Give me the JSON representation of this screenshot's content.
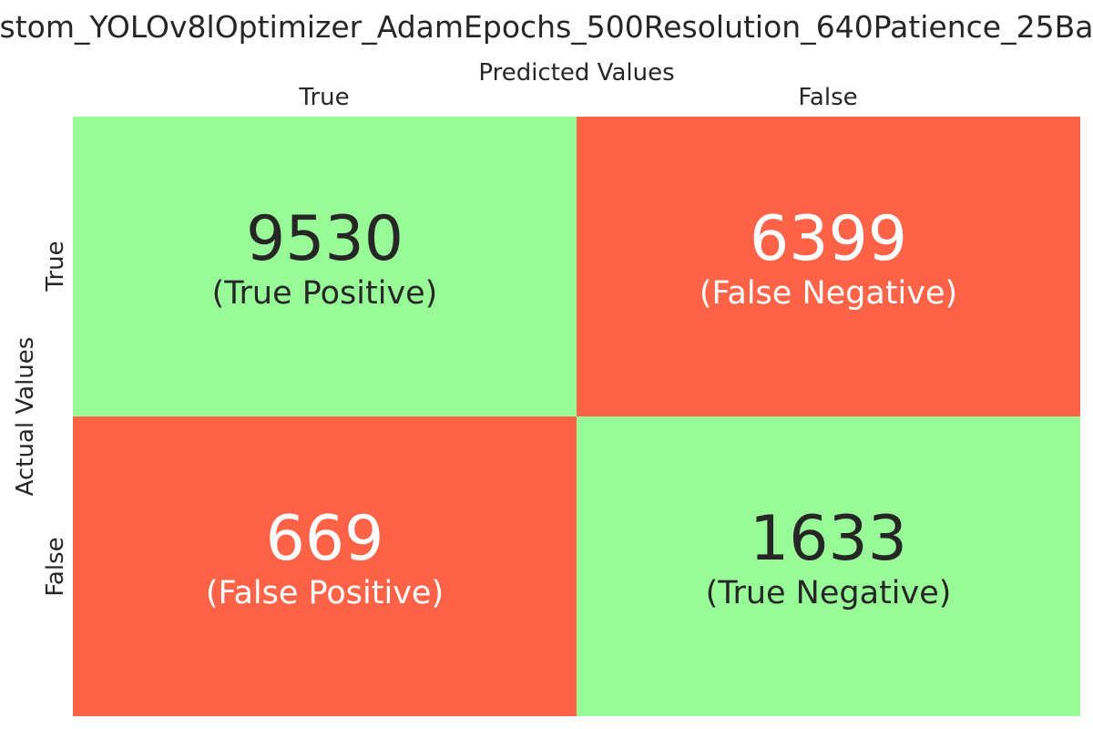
{
  "title": "stom_YOLOv8lOptimizer_AdamEpochs_500Resolution_640Patience_25Ba",
  "chart_data": {
    "type": "heatmap",
    "title": "stom_YOLOv8lOptimizer_AdamEpochs_500Resolution_640Patience_25Ba",
    "xlabel": "Predicted Values",
    "ylabel": "Actual Values",
    "x_categories": [
      "True",
      "False"
    ],
    "y_categories": [
      "True",
      "False"
    ],
    "cells": [
      {
        "actual": "True",
        "predicted": "True",
        "value": 9530,
        "label": "(True Positive)",
        "fill": "#98fb98",
        "text_color": "#262626"
      },
      {
        "actual": "True",
        "predicted": "False",
        "value": 6399,
        "label": "(False Negative)",
        "fill": "#ff6347",
        "text_color": "#ffffff"
      },
      {
        "actual": "False",
        "predicted": "True",
        "value": 669,
        "label": "(False Positive)",
        "fill": "#ff6347",
        "text_color": "#ffffff"
      },
      {
        "actual": "False",
        "predicted": "False",
        "value": 1633,
        "label": "(True Negative)",
        "fill": "#98fb98",
        "text_color": "#262626"
      }
    ]
  }
}
